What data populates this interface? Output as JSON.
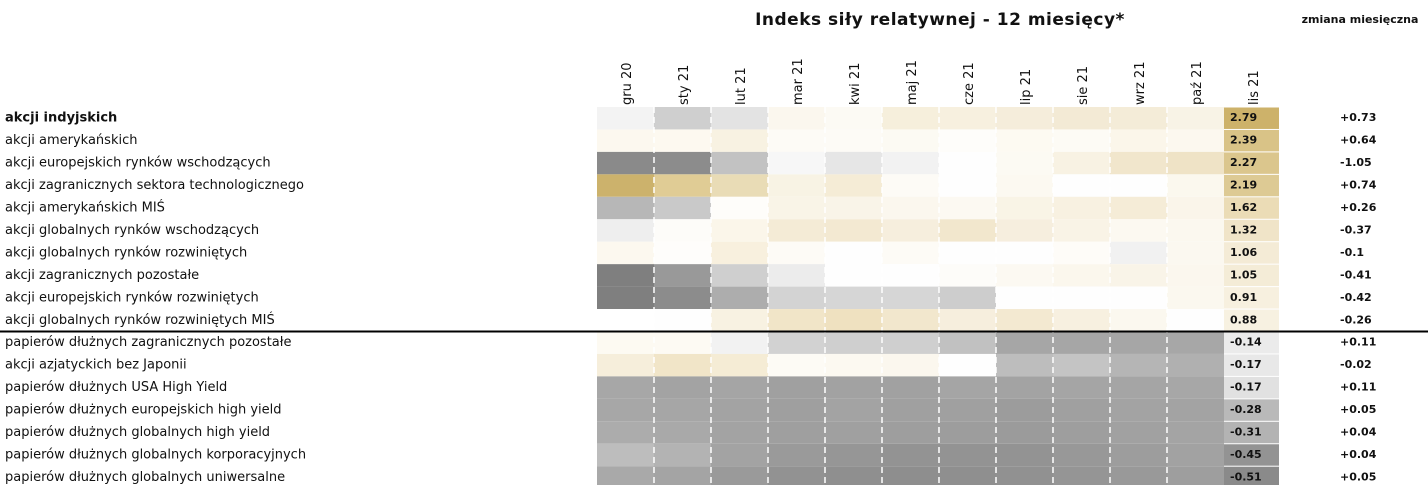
{
  "title": "Indeks siły relatywnej - 12 miesięcy*",
  "change_header": "zmiana miesięczna",
  "months": [
    "gru 20",
    "sty 21",
    "lut 21",
    "mar 21",
    "kwi 21",
    "maj 21",
    "cze 21",
    "lip 21",
    "sie 21",
    "wrz 21",
    "paź 21",
    "lis 21"
  ],
  "rows": [
    {
      "label": "akcji indyjskich",
      "colors": [
        "#f3f3f3",
        "#cfcfcf",
        "#e3e3e3",
        "#fbf7ee",
        "#fcfaf4",
        "#f6efdc",
        "#f7f0df",
        "#f5eddb",
        "#f3ead5",
        "#f4ecd8",
        "#f8f3e6"
      ],
      "value": "2.79",
      "value_color": "#cdb26a",
      "change": "+0.73"
    },
    {
      "label": "akcji amerykańskich",
      "colors": [
        "#fcf8ef",
        "#fdf9f0",
        "#f8f2e2",
        "#fdfbf6",
        "#fdfbf6",
        "#fcfaf3",
        "#fefdfa",
        "#fdfaf2",
        "#fdfbf5",
        "#fbf6ea",
        "#fcf8ef"
      ],
      "value": "2.39",
      "value_color": "#d9c387",
      "change": "+0.64"
    },
    {
      "label": "akcji europejskich rynków wschodzących",
      "colors": [
        "#8a8a8a",
        "#8c8c8c",
        "#c2c2c2",
        "#f7f7f7",
        "#e6e6e6",
        "#f2f2f2",
        "#fefefe",
        "#fcfaf3",
        "#f8f2e3",
        "#f1e6cc",
        "#efe3c6"
      ],
      "value": "2.27",
      "value_color": "#dbc68d",
      "change": "-1.05"
    },
    {
      "label": "akcji zagranicznych sektora technologicznego",
      "colors": [
        "#ccb26c",
        "#e0cc95",
        "#e9dcb6",
        "#f8f3e4",
        "#f5ecd6",
        "#fdfbf6",
        "#fefefe",
        "#fcf9f1",
        "#fefefe",
        "#fefefe",
        "#fbf8ee"
      ],
      "value": "2.19",
      "value_color": "#ddca94",
      "change": "+0.74"
    },
    {
      "label": "akcji amerykańskich MIŚ",
      "colors": [
        "#b7b7b7",
        "#c9c9c9",
        "#fefdfa",
        "#f9f4e7",
        "#f9f4e8",
        "#fbf7ee",
        "#fcf9f2",
        "#f9f4e6",
        "#f8f1e1",
        "#f5ecd7",
        "#faf5ea"
      ],
      "value": "1.62",
      "value_color": "#ebdcb6",
      "change": "+0.26"
    },
    {
      "label": "akcji globalnych rynków wschodzących",
      "colors": [
        "#eeeeee",
        "#fdfcf9",
        "#fbf6ea",
        "#f4ebd6",
        "#f3e9d2",
        "#f6eedd",
        "#f2e7cd",
        "#f6eede",
        "#f9f3e6",
        "#fcf9f1",
        "#fbf8ef"
      ],
      "value": "1.32",
      "value_color": "#f0e4c8",
      "change": "-0.37"
    },
    {
      "label": "akcji globalnych rynków rozwiniętych",
      "colors": [
        "#fcf8ef",
        "#fefdfb",
        "#f8f0de",
        "#fdfbf6",
        "#fefefe",
        "#fdfbf6",
        "#fefefe",
        "#fefefe",
        "#fefcf8",
        "#f1f1f1",
        "#fbf8f0"
      ],
      "value": "1.06",
      "value_color": "#f4ebd6",
      "change": "-0.1"
    },
    {
      "label": "akcji zagranicznych pozostałe",
      "colors": [
        "#7f7f7f",
        "#999999",
        "#cfcfcf",
        "#ececec",
        "#fefefe",
        "#fefefe",
        "#fdfcf9",
        "#fcf9f2",
        "#fbf7ed",
        "#f9f4e8",
        "#fbf7ee"
      ],
      "value": "1.05",
      "value_color": "#f4ecd7",
      "change": "-0.41"
    },
    {
      "label": "akcji europejskich rynków rozwiniętych",
      "colors": [
        "#7f7f7f",
        "#8c8c8c",
        "#adadad",
        "#d3d3d3",
        "#d6d6d6",
        "#d6d6d6",
        "#cdcdcd",
        "#fefefe",
        "#fefefe",
        "#fefefe",
        "#fbf8ef"
      ],
      "value": "0.91",
      "value_color": "#f7f0df",
      "change": "-0.42"
    },
    {
      "label": "akcji globalnych rynków rozwiniętych MIŚ",
      "colors": [
        "#ffffff",
        "#fefefe",
        "#f8f2e2",
        "#f1e5c8",
        "#efe1c0",
        "#f2e7cd",
        "#f6eedd",
        "#f3e9d1",
        "#f7f0e0",
        "#fbf8ef",
        "#fefefe"
      ],
      "value": "0.88",
      "value_color": "#f7f1e1",
      "change": "-0.26"
    },
    {
      "label": "papierów dłużnych zagranicznych pozostałe",
      "colors": [
        "#fdfaf2",
        "#fdfaf3",
        "#f2f2f2",
        "#d2d2d2",
        "#cfcfcf",
        "#cfcfcf",
        "#c1c1c1",
        "#a6a6a6",
        "#a6a6a6",
        "#a6a6a6",
        "#a7a7a7"
      ],
      "value": "-0.14",
      "value_color": "#ebebeb",
      "change": "+0.11"
    },
    {
      "label": "akcji azjatyckich bez Japonii",
      "colors": [
        "#f6eedb",
        "#f1e5c8",
        "#f5ecd5",
        "#fdfbf5",
        "#fcf9f1",
        "#fbf7ee",
        "#fefefe",
        "#bdbdbd",
        "#c4c4c4",
        "#b5b5b5",
        "#b0b0b0"
      ],
      "value": "-0.17",
      "value_color": "#e8e8e8",
      "change": "-0.02"
    },
    {
      "label": "papierów dłużnych USA High Yield",
      "colors": [
        "#a7a7a7",
        "#a3a3a3",
        "#a5a5a5",
        "#a0a0a0",
        "#a2a2a2",
        "#a1a1a1",
        "#a5a5a5",
        "#a3a3a3",
        "#a5a5a5",
        "#a5a5a5",
        "#a7a7a7"
      ],
      "value": "-0.17",
      "value_color": "#e1e1e1",
      "change": "+0.11"
    },
    {
      "label": "papierów dłużnych europejskich high yield",
      "colors": [
        "#a7a7a7",
        "#a6a6a6",
        "#a3a3a3",
        "#9f9f9f",
        "#a3a3a3",
        "#a0a0a0",
        "#a0a0a0",
        "#9c9c9c",
        "#a0a0a0",
        "#a3a3a3",
        "#a3a3a3"
      ],
      "value": "-0.28",
      "value_color": "#b9b9b9",
      "change": "+0.05"
    },
    {
      "label": "papierów dłużnych globalnych high yield",
      "colors": [
        "#acacac",
        "#a9a9a9",
        "#a3a3a3",
        "#9f9f9f",
        "#a0a0a0",
        "#9e9e9e",
        "#9d9d9d",
        "#9b9b9b",
        "#9e9e9e",
        "#a1a1a1",
        "#a4a4a4"
      ],
      "value": "-0.31",
      "value_color": "#b3b3b3",
      "change": "+0.04"
    },
    {
      "label": "papierów dłużnych globalnych korporacyjnych",
      "colors": [
        "#bdbdbd",
        "#b3b3b3",
        "#a3a3a3",
        "#9a9a9a",
        "#969696",
        "#939393",
        "#939393",
        "#939393",
        "#989898",
        "#9d9d9d",
        "#a2a2a2"
      ],
      "value": "-0.45",
      "value_color": "#939393",
      "change": "+0.04"
    },
    {
      "label": "papierów dłużnych globalnych uniwersalne",
      "colors": [
        "#a9a9a9",
        "#a4a4a4",
        "#9a9a9a",
        "#929292",
        "#8f8f8f",
        "#8e8e8e",
        "#8f8f8f",
        "#919191",
        "#959595",
        "#999999",
        "#9e9e9e"
      ],
      "value": "-0.51",
      "value_color": "#8a8a8a",
      "change": "+0.05"
    }
  ]
}
